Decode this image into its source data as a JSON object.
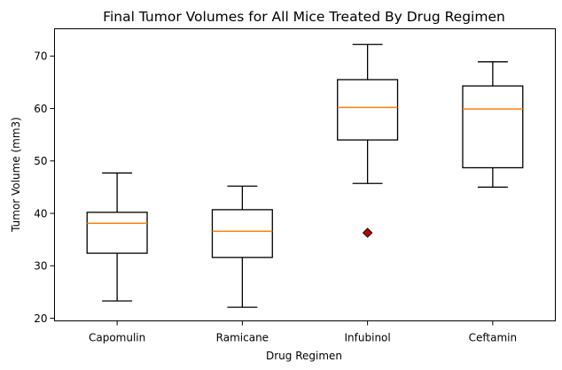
{
  "chart_data": {
    "type": "box",
    "title": "Final Tumor Volumes for All Mice Treated By Drug Regimen",
    "xlabel": "Drug Regimen",
    "ylabel": "Tumor Volume (mm3)",
    "ylim": [
      19.5,
      75.2
    ],
    "yticks": [
      20,
      30,
      40,
      50,
      60,
      70
    ],
    "grid": false,
    "median_color": "#ff7f0e",
    "outlier_color": "#cc0000",
    "categories": [
      "Capomulin",
      "Ramicane",
      "Infubinol",
      "Ceftamin"
    ],
    "boxes": [
      {
        "label": "Capomulin",
        "whisker_low": 23.3,
        "q1": 32.4,
        "median": 38.1,
        "q3": 40.2,
        "whisker_high": 47.7,
        "outliers": []
      },
      {
        "label": "Ramicane",
        "whisker_low": 22.1,
        "q1": 31.6,
        "median": 36.6,
        "q3": 40.7,
        "whisker_high": 45.2,
        "outliers": []
      },
      {
        "label": "Infubinol",
        "whisker_low": 45.7,
        "q1": 54.0,
        "median": 60.2,
        "q3": 65.5,
        "whisker_high": 72.2,
        "outliers": [
          36.3
        ]
      },
      {
        "label": "Ceftamin",
        "whisker_low": 45.0,
        "q1": 48.7,
        "median": 59.9,
        "q3": 64.3,
        "whisker_high": 68.9,
        "outliers": []
      }
    ]
  }
}
